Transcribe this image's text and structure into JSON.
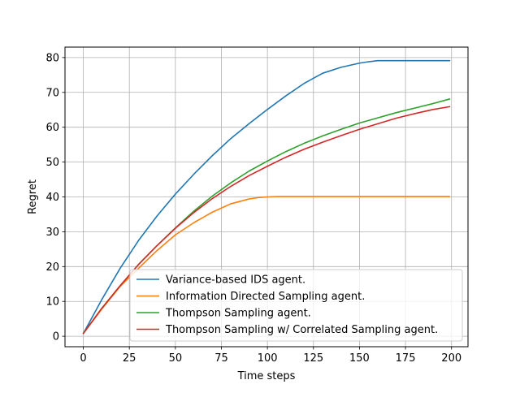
{
  "chart_data": {
    "type": "line",
    "xlabel": "Time steps",
    "ylabel": "Regret",
    "xlim": [
      -9.95,
      208.95
    ],
    "ylim": [
      -3,
      83
    ],
    "xticks": [
      0,
      25,
      50,
      75,
      100,
      125,
      150,
      175,
      200
    ],
    "yticks": [
      0,
      10,
      20,
      30,
      40,
      50,
      60,
      70,
      80
    ],
    "xtick_labels": [
      "0",
      "25",
      "50",
      "75",
      "100",
      "125",
      "150",
      "175",
      "200"
    ],
    "ytick_labels": [
      "0",
      "10",
      "20",
      "30",
      "40",
      "50",
      "60",
      "70",
      "80"
    ],
    "grid": true,
    "legend_position": "lower-right",
    "series": [
      {
        "name": "Variance-based IDS agent.",
        "color": "#1f77b4",
        "x": [
          0,
          10,
          20,
          30,
          40,
          50,
          60,
          70,
          80,
          90,
          100,
          110,
          120,
          130,
          140,
          150,
          155,
          160,
          165,
          170,
          180,
          190,
          199
        ],
        "y": [
          0.8,
          10.5,
          19.5,
          27.5,
          34.5,
          40.8,
          46.5,
          51.8,
          56.7,
          61.0,
          65.1,
          69.0,
          72.6,
          75.5,
          77.2,
          78.4,
          78.8,
          79.1,
          79.1,
          79.1,
          79.1,
          79.1,
          79.1
        ]
      },
      {
        "name": "Information Directed Sampling agent.",
        "color": "#ff7f0e",
        "x": [
          0,
          10,
          20,
          30,
          40,
          50,
          60,
          70,
          80,
          90,
          95,
          100,
          105,
          110,
          120,
          140,
          160,
          180,
          199
        ],
        "y": [
          0.8,
          7.8,
          14.3,
          19.5,
          24.6,
          29.1,
          32.6,
          35.6,
          38.0,
          39.4,
          39.8,
          40.0,
          40.1,
          40.1,
          40.1,
          40.1,
          40.1,
          40.1,
          40.1
        ]
      },
      {
        "name": "Thompson Sampling agent.",
        "color": "#2ca02c",
        "x": [
          0,
          10,
          20,
          30,
          40,
          50,
          60,
          70,
          80,
          90,
          100,
          110,
          120,
          130,
          140,
          150,
          160,
          170,
          180,
          190,
          199
        ],
        "y": [
          0.8,
          8.0,
          14.5,
          20.6,
          26.0,
          31.1,
          35.9,
          40.2,
          44.0,
          47.4,
          50.3,
          53.0,
          55.4,
          57.5,
          59.4,
          61.2,
          62.7,
          64.2,
          65.5,
          66.8,
          68.1
        ]
      },
      {
        "name": "Thompson Sampling w/ Correlated Sampling agent.",
        "color": "#d62728",
        "x": [
          0,
          10,
          20,
          30,
          40,
          50,
          60,
          70,
          80,
          90,
          100,
          110,
          120,
          130,
          140,
          150,
          160,
          170,
          180,
          190,
          199
        ],
        "y": [
          0.8,
          8.0,
          14.5,
          20.6,
          26.0,
          31.0,
          35.5,
          39.5,
          43.0,
          46.1,
          48.8,
          51.4,
          53.7,
          55.7,
          57.6,
          59.4,
          61.0,
          62.6,
          63.9,
          65.1,
          65.9
        ]
      }
    ]
  }
}
